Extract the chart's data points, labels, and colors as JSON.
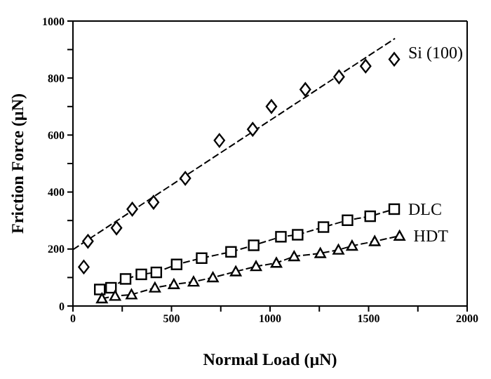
{
  "chart_data": {
    "type": "line",
    "xlabel": "Normal Load (µN)",
    "ylabel": "Friction Force (µN)",
    "xlim": [
      0,
      2000
    ],
    "xticks": [
      0,
      {
        "value": 250,
        "label": null
      },
      500,
      {
        "value": 750,
        "label": null
      },
      1000,
      {
        "value": 1250,
        "label": null
      },
      1500,
      {
        "value": 1750,
        "label": null
      },
      2000
    ],
    "ylim": [
      0,
      1000
    ],
    "yticks": [
      0,
      {
        "value": 100,
        "label": null
      },
      200,
      {
        "value": 300,
        "label": null
      },
      400,
      {
        "value": 500,
        "label": null
      },
      600,
      {
        "value": 700,
        "label": null
      },
      800,
      {
        "value": 900,
        "label": null
      },
      1000
    ],
    "grid": false,
    "legend": false,
    "series": [
      {
        "name": "Si (100)",
        "type": "scatter",
        "marker": "diamond",
        "color": "#000000",
        "x": [
          55,
          76,
          221,
          301,
          409,
          570,
          743,
          912,
          1007,
          1179,
          1350,
          1485,
          1630
        ],
        "values": [
          137,
          227,
          274,
          340,
          364,
          448,
          581,
          620,
          700,
          760,
          804,
          842,
          866
        ]
      },
      {
        "marker": "none",
        "line_style": "dashed",
        "color": "#000000",
        "x": [
          0,
          1634
        ],
        "values": [
          198,
          939
        ]
      },
      {
        "name": "DLC",
        "marker": "square",
        "line_style": "dashed",
        "color": "#000000",
        "x": [
          136,
          193,
          267,
          347,
          423,
          526,
          653,
          802,
          917,
          1055,
          1140,
          1271,
          1393,
          1508,
          1630
        ],
        "values": [
          58,
          64,
          95,
          111,
          118,
          146,
          168,
          190,
          213,
          243,
          250,
          277,
          301,
          315,
          340
        ]
      },
      {
        "name": "HDT",
        "marker": "triangle",
        "line_style": "dashed",
        "color": "#000000",
        "x": [
          147,
          214,
          297,
          416,
          512,
          612,
          710,
          826,
          929,
          1032,
          1122,
          1255,
          1347,
          1416,
          1531,
          1657
        ],
        "values": [
          26,
          35,
          40,
          64,
          76,
          85,
          100,
          121,
          139,
          151,
          174,
          185,
          197,
          211,
          227,
          246
        ]
      }
    ]
  }
}
